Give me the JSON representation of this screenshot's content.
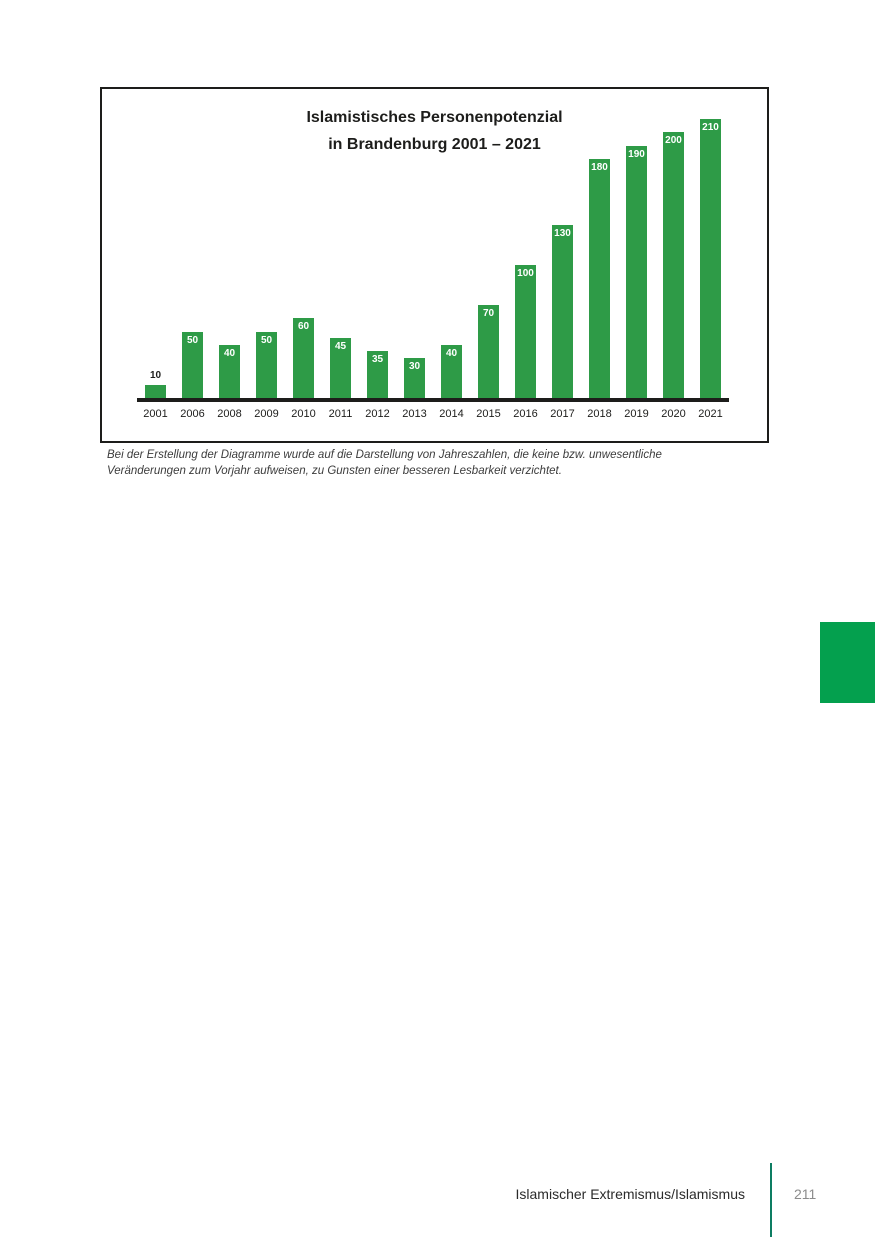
{
  "chart_data": {
    "type": "bar",
    "title": "Islamistisches Personenpotenzial",
    "subtitle": "in Brandenburg 2001 – 2021",
    "categories": [
      "2001",
      "2006",
      "2008",
      "2009",
      "2010",
      "2011",
      "2012",
      "2013",
      "2014",
      "2015",
      "2016",
      "2017",
      "2018",
      "2019",
      "2020",
      "2021"
    ],
    "values": [
      10,
      50,
      40,
      50,
      60,
      45,
      35,
      30,
      40,
      70,
      100,
      130,
      180,
      190,
      200,
      210
    ],
    "xlabel": "",
    "ylabel": "",
    "ylim": [
      0,
      220
    ],
    "grid": false,
    "legend": false,
    "bar_color": "#2e9b47",
    "value_label_inside_color": "#ffffff",
    "value_label_outside_color": "#1d1d1b",
    "axis_color": "#1d1d1b"
  },
  "footnote": {
    "line1": "Bei der Erstellung der Diagramme wurde auf die Darstellung von Jahreszahlen, die keine bzw. unwesentliche",
    "line2": "Veränderungen zum Vorjahr aufweisen, zu Gunsten einer besseren Lesbarkeit verzichtet."
  },
  "footer": {
    "section_title": "Islamischer Extremismus/Islamismus",
    "page_number": "211"
  },
  "accents": {
    "section_tab_color": "#04a04e",
    "footer_divider_color": "#0d7d62",
    "page_number_color": "#8c8c8c"
  }
}
